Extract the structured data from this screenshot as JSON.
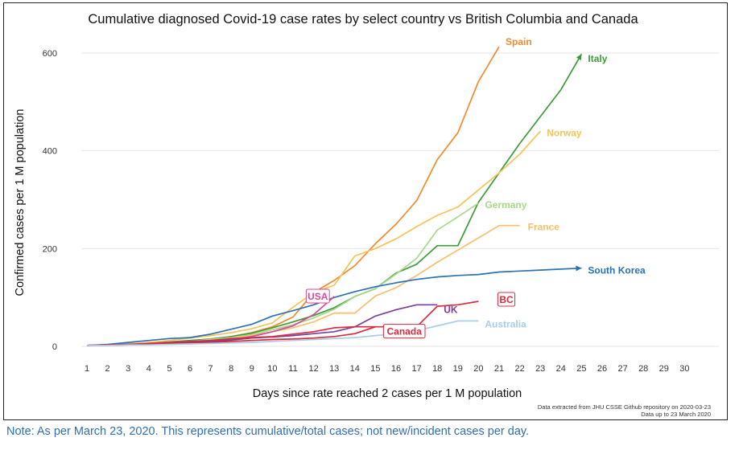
{
  "chart_data": {
    "type": "line",
    "title": "Cumulative diagnosed Covid-19 case rates by select country vs British Columbia and Canada",
    "xlabel": "Days since rate reached 2 cases per 1 M population",
    "ylabel": "Confirmed cases per 1 M population",
    "xlim": [
      1,
      30
    ],
    "ylim": [
      0,
      600
    ],
    "xticks": [
      1,
      2,
      3,
      4,
      5,
      6,
      7,
      8,
      9,
      10,
      11,
      12,
      13,
      14,
      15,
      16,
      17,
      18,
      19,
      20,
      21,
      22,
      23,
      24,
      25,
      26,
      27,
      28,
      29,
      30
    ],
    "yticks": [
      0,
      200,
      400,
      600
    ],
    "grid": "horizontal",
    "series": [
      {
        "name": "Spain",
        "color": "#f28a2e",
        "label_style": "text",
        "x": [
          1,
          2,
          3,
          4,
          5,
          6,
          7,
          8,
          9,
          10,
          11,
          12,
          13,
          14,
          15,
          16,
          17,
          18,
          19,
          20,
          21
        ],
        "y": [
          2,
          3,
          4,
          6,
          8,
          10,
          14,
          20,
          28,
          40,
          60,
          110,
          135,
          165,
          210,
          250,
          298,
          382,
          437,
          542,
          613
        ]
      },
      {
        "name": "Italy",
        "color": "#3d9c3a",
        "label_style": "text",
        "arrow": true,
        "x": [
          1,
          2,
          3,
          4,
          5,
          6,
          7,
          8,
          9,
          10,
          11,
          12,
          13,
          14,
          15,
          16,
          17,
          18,
          19,
          20,
          21,
          22,
          23,
          24,
          25
        ],
        "y": [
          2,
          3,
          5,
          7,
          9,
          12,
          15,
          20,
          27,
          38,
          50,
          63,
          79,
          102,
          118,
          150,
          168,
          206,
          206,
          295,
          355,
          415,
          470,
          525,
          598
        ]
      },
      {
        "name": "Norway",
        "color": "#f7c25a",
        "label_style": "text",
        "x": [
          1,
          2,
          3,
          4,
          5,
          6,
          7,
          8,
          9,
          10,
          11,
          12,
          13,
          14,
          15,
          16,
          17,
          18,
          19,
          20,
          21,
          22,
          23
        ],
        "y": [
          2,
          3,
          5,
          8,
          12,
          17,
          22,
          28,
          36,
          48,
          80,
          110,
          125,
          185,
          200,
          220,
          245,
          268,
          285,
          320,
          355,
          393,
          440
        ]
      },
      {
        "name": "Germany",
        "color": "#a7d78b",
        "label_style": "text",
        "x": [
          1,
          2,
          3,
          4,
          5,
          6,
          7,
          8,
          9,
          10,
          11,
          12,
          13,
          14,
          15,
          16,
          17,
          18,
          19,
          20
        ],
        "y": [
          2,
          3,
          4,
          6,
          8,
          10,
          14,
          18,
          24,
          34,
          44,
          58,
          76,
          102,
          118,
          148,
          180,
          238,
          265,
          293
        ]
      },
      {
        "name": "France",
        "color": "#f8be6c",
        "label_style": "text",
        "x": [
          1,
          2,
          3,
          4,
          5,
          6,
          7,
          8,
          9,
          10,
          11,
          12,
          13,
          14,
          15,
          16,
          17,
          18,
          19,
          20,
          21,
          22
        ],
        "y": [
          2,
          3,
          4,
          5,
          7,
          9,
          12,
          16,
          22,
          30,
          38,
          50,
          68,
          68,
          103,
          120,
          145,
          172,
          197,
          222,
          247,
          247
        ]
      },
      {
        "name": "South Korea",
        "color": "#2a72b5",
        "label_style": "text",
        "arrow": true,
        "x": [
          1,
          2,
          3,
          4,
          5,
          6,
          7,
          8,
          9,
          10,
          11,
          12,
          13,
          14,
          15,
          16,
          17,
          18,
          19,
          20,
          21,
          22,
          23,
          24,
          25
        ],
        "y": [
          2,
          4,
          8,
          12,
          16,
          18,
          25,
          35,
          45,
          62,
          73,
          85,
          100,
          112,
          122,
          130,
          137,
          142,
          145,
          147,
          152,
          154,
          156,
          158,
          160
        ]
      },
      {
        "name": "USA",
        "color": "#d9489a",
        "label_style": "box",
        "x": [
          1,
          2,
          3,
          4,
          5,
          6,
          7,
          8,
          9,
          10,
          11,
          12,
          13
        ],
        "y": [
          2,
          3,
          4,
          5,
          6,
          8,
          10,
          14,
          20,
          30,
          42,
          65,
          102
        ]
      },
      {
        "name": "UK",
        "color": "#7b3f99",
        "label_style": "text",
        "x": [
          1,
          2,
          3,
          4,
          5,
          6,
          7,
          8,
          9,
          10,
          11,
          12,
          13,
          14,
          15,
          16,
          17,
          18
        ],
        "y": [
          2,
          3,
          4,
          5,
          6,
          8,
          10,
          13,
          17,
          19,
          22,
          26,
          30,
          40,
          62,
          75,
          85,
          85
        ]
      },
      {
        "name": "BC",
        "color": "#d82b3c",
        "label_style": "box",
        "x": [
          1,
          2,
          3,
          4,
          5,
          6,
          7,
          8,
          9,
          10,
          11,
          12,
          13,
          14,
          15,
          16,
          17,
          18,
          19,
          20
        ],
        "y": [
          2,
          3,
          4,
          6,
          8,
          10,
          12,
          16,
          18,
          20,
          25,
          30,
          38,
          40,
          40,
          40,
          40,
          82,
          85,
          92
        ]
      },
      {
        "name": "Canada",
        "color": "#d82b3c",
        "label_style": "box",
        "x": [
          1,
          2,
          3,
          4,
          5,
          6,
          7,
          8,
          9,
          10,
          11,
          12,
          13,
          14,
          15
        ],
        "y": [
          2,
          2,
          3,
          4,
          5,
          6,
          8,
          10,
          12,
          14,
          15,
          17,
          20,
          26,
          40
        ]
      },
      {
        "name": "Australia",
        "color": "#a8cde6",
        "label_style": "text",
        "x": [
          1,
          2,
          3,
          4,
          5,
          6,
          7,
          8,
          9,
          10,
          11,
          12,
          13,
          14,
          15,
          16,
          17,
          18,
          19,
          20
        ],
        "y": [
          2,
          2,
          3,
          3,
          4,
          5,
          6,
          7,
          8,
          10,
          12,
          14,
          16,
          18,
          22,
          26,
          32,
          42,
          52,
          52
        ]
      }
    ]
  },
  "source_line1": "Data extracted from JHU CSSE Github repository on 2020-03-23",
  "source_line2": "Data up to 23 March 2020",
  "note": "Note: As per March 23, 2020. This represents cumulative/total cases; not new/incident cases per day."
}
